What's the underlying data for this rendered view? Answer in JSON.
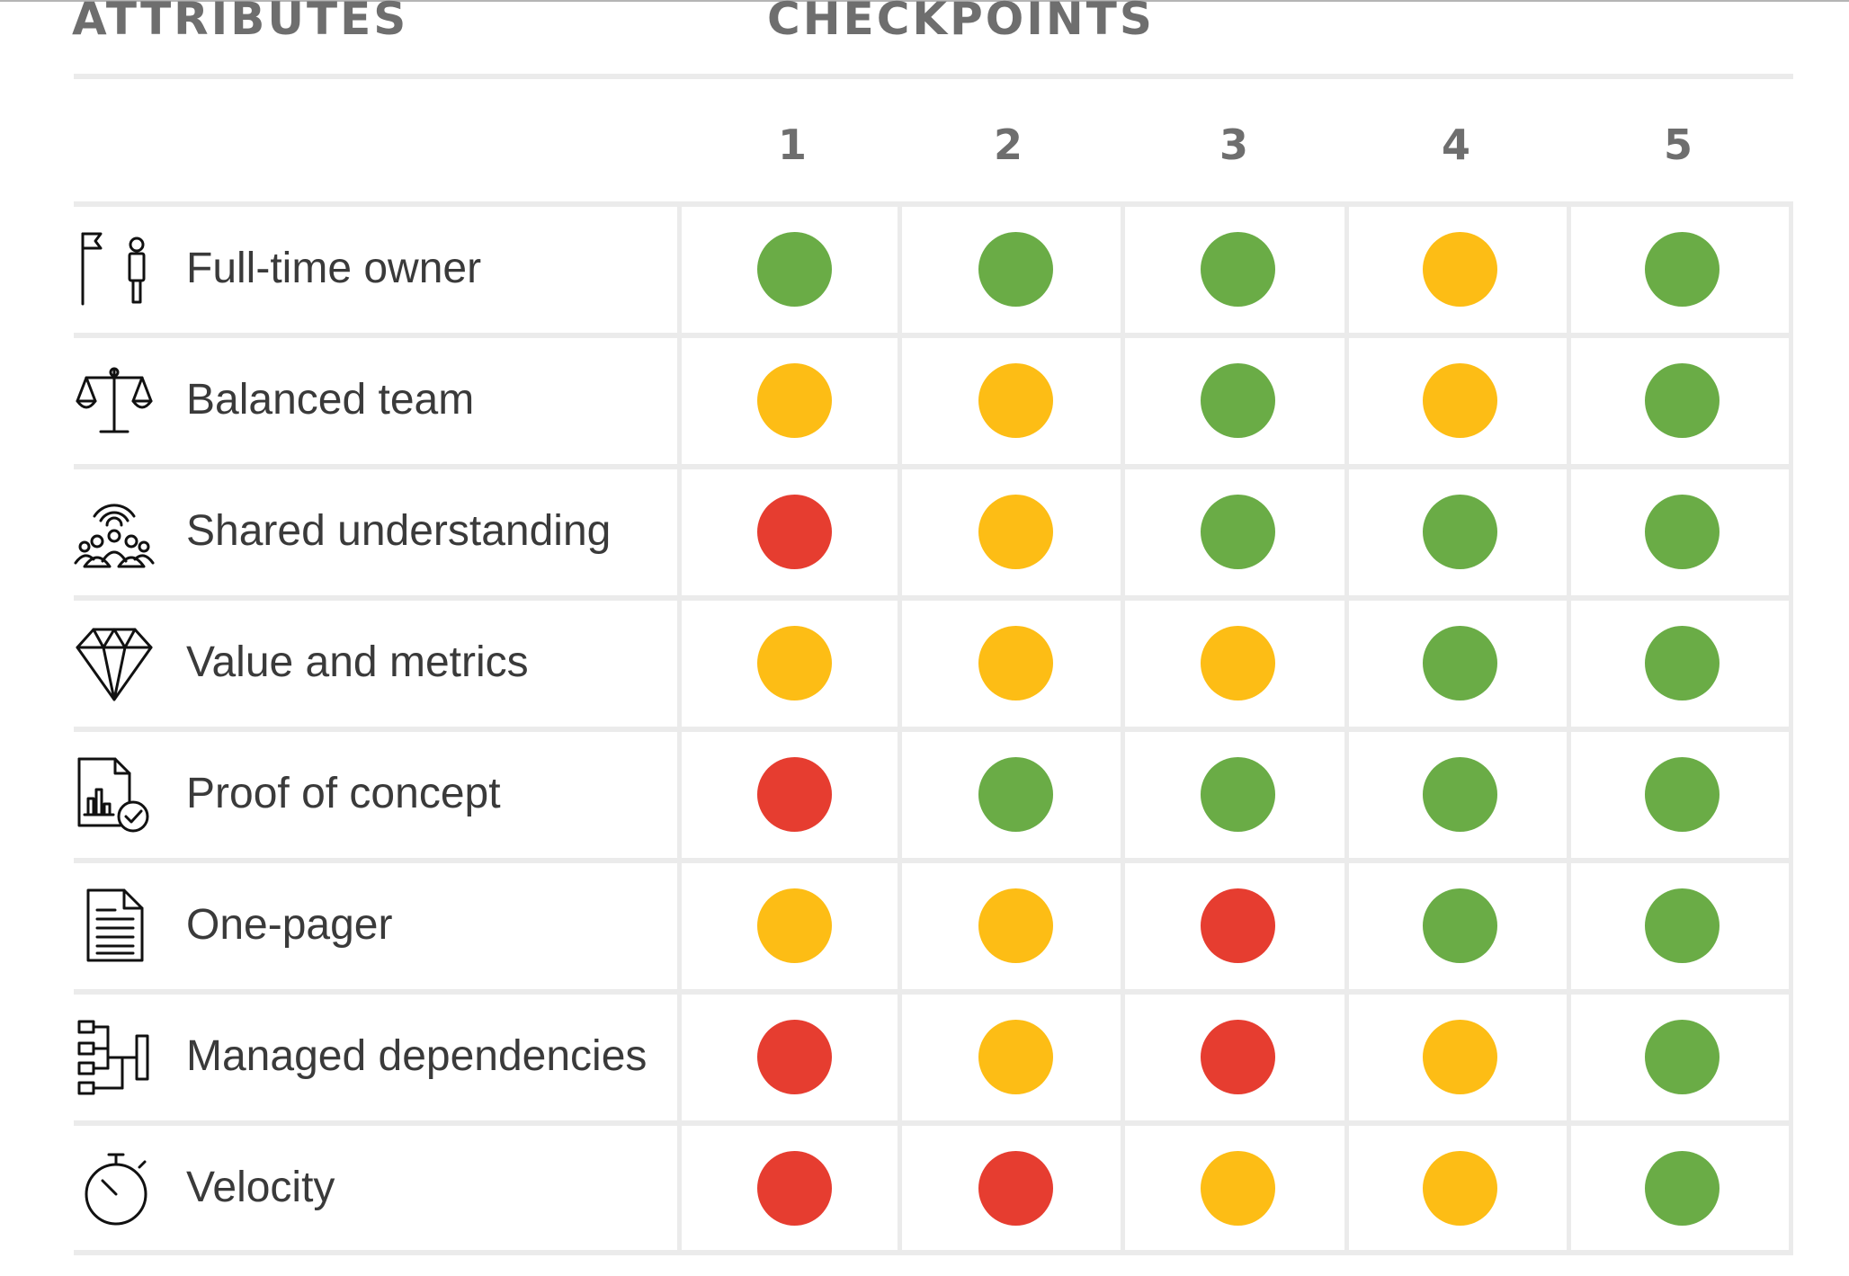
{
  "header": {
    "attributes_title": "ATTRIBUTES",
    "checkpoints_title": "CHECKPOINTS"
  },
  "checkpoints": [
    "1",
    "2",
    "3",
    "4",
    "5"
  ],
  "status_colors": {
    "green": "#6aac46",
    "amber": "#fdbd15",
    "red": "#e63d30"
  },
  "rows": [
    {
      "label": "Full-time owner",
      "icon": "flag-person-icon",
      "statuses": [
        "green",
        "green",
        "green",
        "amber",
        "green"
      ]
    },
    {
      "label": "Balanced team",
      "icon": "balance-scale-icon",
      "statuses": [
        "amber",
        "amber",
        "green",
        "amber",
        "green"
      ]
    },
    {
      "label": "Shared understanding",
      "icon": "team-signal-icon",
      "statuses": [
        "red",
        "amber",
        "green",
        "green",
        "green"
      ]
    },
    {
      "label": "Value and metrics",
      "icon": "diamond-icon",
      "statuses": [
        "amber",
        "amber",
        "amber",
        "green",
        "green"
      ]
    },
    {
      "label": "Proof of concept",
      "icon": "chart-document-check-icon",
      "statuses": [
        "red",
        "green",
        "green",
        "green",
        "green"
      ]
    },
    {
      "label": "One-pager",
      "icon": "document-icon",
      "statuses": [
        "amber",
        "amber",
        "red",
        "green",
        "green"
      ]
    },
    {
      "label": "Managed dependencies",
      "icon": "dependency-tree-icon",
      "statuses": [
        "red",
        "amber",
        "red",
        "amber",
        "green"
      ]
    },
    {
      "label": "Velocity",
      "icon": "stopwatch-icon",
      "statuses": [
        "red",
        "red",
        "amber",
        "amber",
        "green"
      ]
    }
  ]
}
